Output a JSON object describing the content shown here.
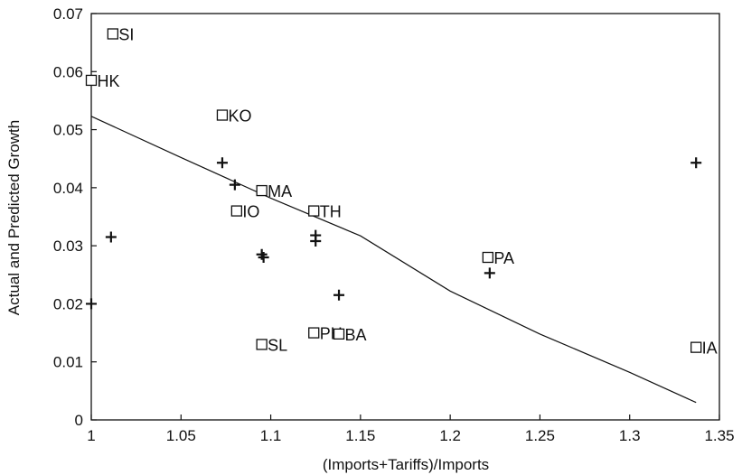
{
  "chart_data": {
    "type": "scatter",
    "xlabel": "(Imports+Tariffs)/Imports",
    "ylabel": "Actual and Predicted Growth",
    "xlim": [
      1,
      1.35
    ],
    "ylim": [
      0,
      0.07
    ],
    "x_ticks": [
      "1",
      "1.05",
      "1.1",
      "1.15",
      "1.2",
      "1.25",
      "1.3",
      "1.35"
    ],
    "y_ticks": [
      "0",
      "0.01",
      "0.02",
      "0.03",
      "0.04",
      "0.05",
      "0.06",
      "0.07"
    ],
    "grid": false,
    "series": [
      {
        "marker": "square",
        "points": [
          {
            "label": "SI",
            "x": 1.012,
            "y": 0.0665
          },
          {
            "label": "HK",
            "x": 1.0,
            "y": 0.0585
          },
          {
            "label": "KO",
            "x": 1.073,
            "y": 0.0525
          },
          {
            "label": "MA",
            "x": 1.095,
            "y": 0.0395
          },
          {
            "label": "IO",
            "x": 1.081,
            "y": 0.036
          },
          {
            "label": "TH",
            "x": 1.124,
            "y": 0.036
          },
          {
            "label": "PA",
            "x": 1.221,
            "y": 0.028
          },
          {
            "label": "SL",
            "x": 1.095,
            "y": 0.013
          },
          {
            "label": "PH",
            "x": 1.124,
            "y": 0.015
          },
          {
            "label": "BA",
            "x": 1.138,
            "y": 0.0148
          },
          {
            "label": "IA",
            "x": 1.337,
            "y": 0.0125
          }
        ]
      },
      {
        "marker": "plus",
        "points": [
          {
            "x": 1.011,
            "y": 0.0315
          },
          {
            "x": 1.0,
            "y": 0.02
          },
          {
            "x": 1.073,
            "y": 0.0443
          },
          {
            "x": 1.08,
            "y": 0.0405
          },
          {
            "x": 1.095,
            "y": 0.0285
          },
          {
            "x": 1.096,
            "y": 0.028
          },
          {
            "x": 1.125,
            "y": 0.0318
          },
          {
            "x": 1.125,
            "y": 0.0308
          },
          {
            "x": 1.138,
            "y": 0.0215
          },
          {
            "x": 1.222,
            "y": 0.0253
          },
          {
            "x": 1.337,
            "y": 0.0443
          }
        ]
      },
      {
        "marker": "line",
        "points": [
          {
            "x": 1.0,
            "y": 0.0523
          },
          {
            "x": 1.05,
            "y": 0.0452
          },
          {
            "x": 1.1,
            "y": 0.0382
          },
          {
            "x": 1.15,
            "y": 0.0317
          },
          {
            "x": 1.2,
            "y": 0.0222
          },
          {
            "x": 1.25,
            "y": 0.0148
          },
          {
            "x": 1.3,
            "y": 0.0082
          },
          {
            "x": 1.337,
            "y": 0.003
          }
        ]
      }
    ]
  }
}
